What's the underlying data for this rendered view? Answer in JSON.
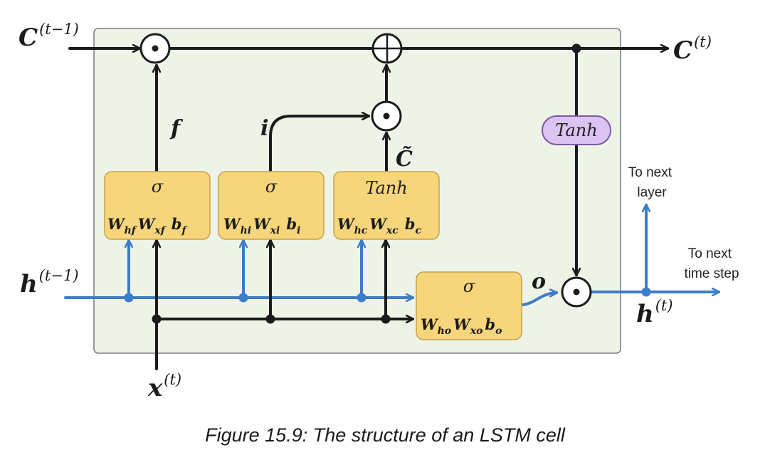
{
  "inputs": {
    "c_prev": {
      "base": "C",
      "sup": "(t−1)"
    },
    "h_prev": {
      "base": "h",
      "sup": "(t−1)"
    },
    "x_t": {
      "base": "x",
      "sup": "(t)"
    }
  },
  "outputs": {
    "c_t": {
      "base": "C",
      "sup": "(t)"
    },
    "h_t": {
      "base": "h",
      "sup": "(t)"
    }
  },
  "gates": {
    "forget": {
      "label": "f",
      "activation": "σ",
      "weights": [
        {
          "base": "W",
          "sub": "hf"
        },
        {
          "base": "W",
          "sub": "xf"
        },
        {
          "base": "b",
          "sub": "f"
        }
      ]
    },
    "input": {
      "label": "i",
      "activation": "σ",
      "weights": [
        {
          "base": "W",
          "sub": "hi"
        },
        {
          "base": "W",
          "sub": "xi"
        },
        {
          "base": "b",
          "sub": "i"
        }
      ]
    },
    "candidate": {
      "label": "C̃",
      "activation": "Tanh",
      "weights": [
        {
          "base": "W",
          "sub": "hc"
        },
        {
          "base": "W",
          "sub": "xc"
        },
        {
          "base": "b",
          "sub": "c"
        }
      ]
    },
    "output": {
      "label": "o",
      "activation": "σ",
      "weights": [
        {
          "base": "W",
          "sub": "ho"
        },
        {
          "base": "W",
          "sub": "xo"
        },
        {
          "base": "b",
          "sub": "o"
        }
      ]
    }
  },
  "cell_tanh": "Tanh",
  "operators": {
    "multiply": "⊙",
    "add": "⊕"
  },
  "notes": {
    "next_layer": [
      "To next",
      "layer"
    ],
    "next_time_step": [
      "To next",
      "time step"
    ]
  },
  "caption": "Figure 15.9: The structure of an LSTM cell",
  "colors": {
    "cell_background": "#eef3e8",
    "gate_fill": "#f7d57a",
    "gate_border": "#c9a24a",
    "tanh_fill": "#dcc3f2",
    "tanh_border": "#7b5aa6",
    "hidden_flow": "#3d7cc9",
    "cell_flow": "#1b1b1b"
  }
}
